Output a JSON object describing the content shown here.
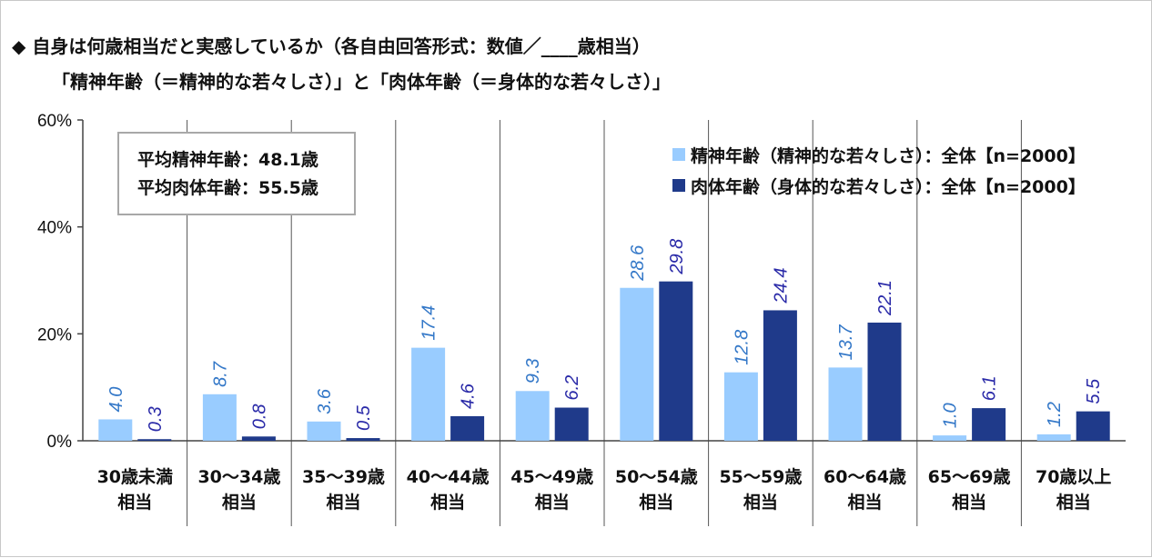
{
  "title_line1": "◆ 自身は何歳相当だと実感しているか（各自由回答形式：数値／____歳相当）",
  "title_line2": "「精神年齢（＝精神的な若々しさ）」と「肉体年齢（＝身体的な若々しさ）」",
  "avg_box": {
    "mental": "平均精神年齢：48.1歳",
    "physical": "平均肉体年齢：55.5歳"
  },
  "legend": {
    "mental": "精神年齢（精神的な若々しさ）：全体【n=2000】",
    "physical": "肉体年齢（身体的な若々しさ）：全体【n=2000】"
  },
  "colors": {
    "mental": "#99ccff",
    "physical": "#1f3a8a",
    "mental_label": "#3478c8",
    "physical_label": "#2a2aa8"
  },
  "chart_data": {
    "type": "bar",
    "categories": [
      [
        "30歳未満",
        "相当"
      ],
      [
        "30～34歳",
        "相当"
      ],
      [
        "35～39歳",
        "相当"
      ],
      [
        "40～44歳",
        "相当"
      ],
      [
        "45～49歳",
        "相当"
      ],
      [
        "50～54歳",
        "相当"
      ],
      [
        "55～59歳",
        "相当"
      ],
      [
        "60～64歳",
        "相当"
      ],
      [
        "65～69歳",
        "相当"
      ],
      [
        "70歳以上",
        "相当"
      ]
    ],
    "series": [
      {
        "name": "精神年齢（精神的な若々しさ）：全体【n=2000】",
        "values": [
          4.0,
          8.7,
          3.6,
          17.4,
          9.3,
          28.6,
          12.8,
          13.7,
          1.0,
          1.2
        ]
      },
      {
        "name": "肉体年齢（身体的な若々しさ）：全体【n=2000】",
        "values": [
          0.3,
          0.8,
          0.5,
          4.6,
          6.2,
          29.8,
          24.4,
          22.1,
          6.1,
          5.5
        ]
      }
    ],
    "yticks": [
      "0%",
      "20%",
      "40%",
      "60%"
    ],
    "ylim": [
      0,
      60
    ],
    "grid": "vertical category separators"
  }
}
